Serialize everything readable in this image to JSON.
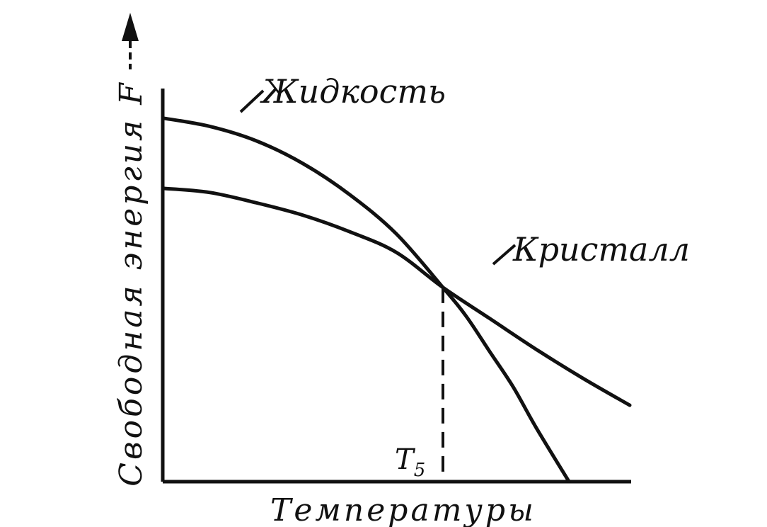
{
  "chart_data": {
    "type": "line",
    "title": "",
    "xlabel": "Температуры",
    "ylabel": "Свободная энергия F",
    "series": [
      {
        "name": "Жидкость",
        "color": "#111111",
        "points": [
          [
            0,
            0.8
          ],
          [
            0.1,
            0.78
          ],
          [
            0.2,
            0.745
          ],
          [
            0.3,
            0.69
          ],
          [
            0.4,
            0.615
          ],
          [
            0.5,
            0.52
          ],
          [
            0.6,
            0.39
          ],
          [
            0.65,
            0.32
          ],
          [
            0.7,
            0.235
          ],
          [
            0.75,
            0.15
          ],
          [
            0.8,
            0.05
          ],
          [
            0.87,
            -0.08
          ]
        ]
      },
      {
        "name": "Кристалл",
        "color": "#111111",
        "points": [
          [
            0,
            0.63
          ],
          [
            0.1,
            0.62
          ],
          [
            0.2,
            0.595
          ],
          [
            0.3,
            0.565
          ],
          [
            0.4,
            0.525
          ],
          [
            0.5,
            0.475
          ],
          [
            0.6,
            0.39
          ],
          [
            0.7,
            0.315
          ],
          [
            0.8,
            0.24
          ],
          [
            0.9,
            0.17
          ],
          [
            1.0,
            0.105
          ]
        ]
      }
    ],
    "annotations": [
      {
        "text": "T",
        "subscript": "5",
        "x": 0.6
      }
    ],
    "xlim": [
      0,
      1.0
    ],
    "ylim": [
      -0.08,
      0.88
    ],
    "grid": false,
    "axes": {
      "y_arrow": true
    },
    "dashed_marker_x": 0.6,
    "line_color": "#111111"
  }
}
